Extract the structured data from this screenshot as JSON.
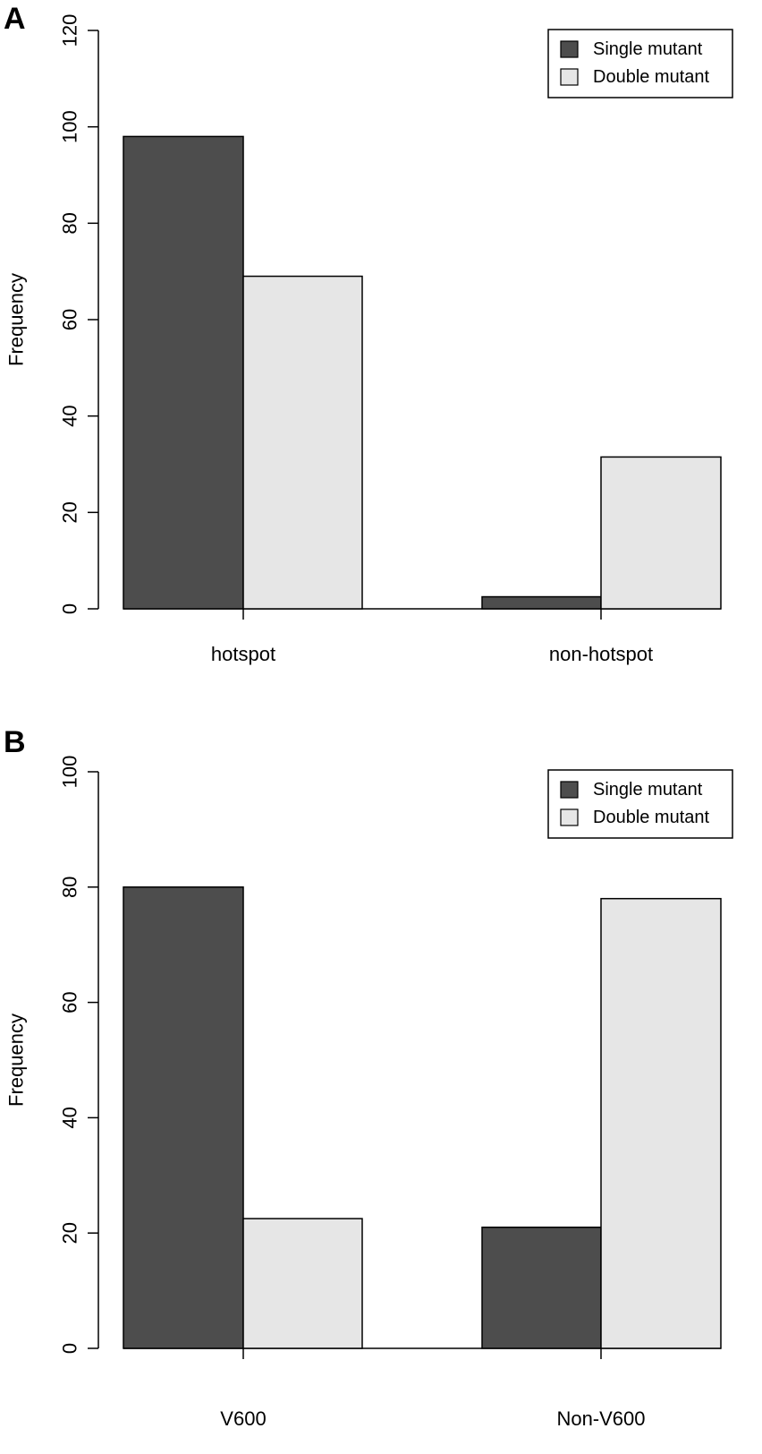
{
  "colors": {
    "single": "#4d4d4d",
    "double": "#e6e6e6",
    "axis": "#000000"
  },
  "chart_data": [
    {
      "panel_label": "A",
      "type": "bar",
      "categories": [
        "hotspot",
        "non-hotspot"
      ],
      "series": [
        {
          "name": "Single mutant",
          "values": [
            98,
            2.5
          ]
        },
        {
          "name": "Double mutant",
          "values": [
            69,
            31.5
          ]
        }
      ],
      "ylabel": "Frequency",
      "xlabel": "",
      "ylim": [
        0,
        120
      ],
      "yticks": [
        0,
        20,
        40,
        60,
        80,
        100,
        120
      ],
      "legend": "top-right",
      "grid": false
    },
    {
      "panel_label": "B",
      "type": "bar",
      "categories": [
        "V600",
        "Non-V600"
      ],
      "series": [
        {
          "name": "Single mutant",
          "values": [
            80,
            21
          ]
        },
        {
          "name": "Double mutant",
          "values": [
            22.5,
            78
          ]
        }
      ],
      "ylabel": "Frequency",
      "xlabel": "",
      "ylim": [
        0,
        100
      ],
      "yticks": [
        0,
        20,
        40,
        60,
        80,
        100
      ],
      "legend": "top-right",
      "grid": false
    }
  ]
}
